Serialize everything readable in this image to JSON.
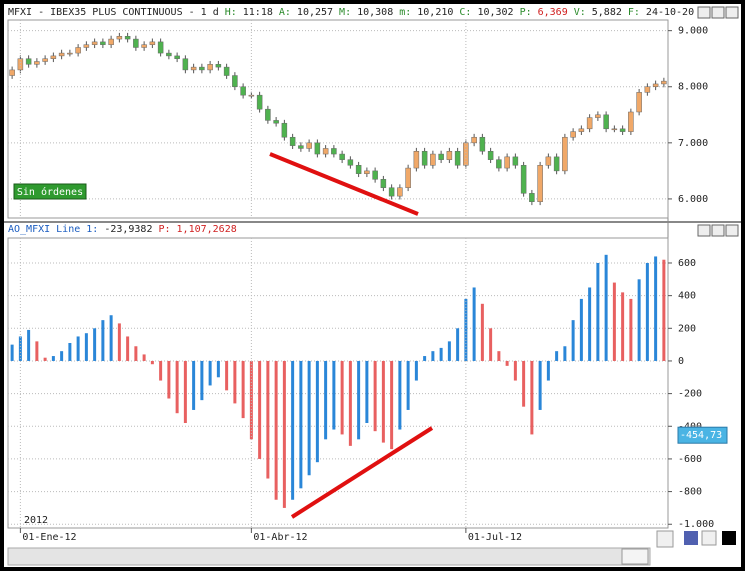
{
  "chart_data": [
    {
      "type": "candlestick",
      "title": "MFXI - IBEX35 PLUS CONTINUOUS -  1 d",
      "info": [
        {
          "label": "H:",
          "value": "11:18"
        },
        {
          "label": "A:",
          "value": "10,257"
        },
        {
          "label": "M:",
          "value": "10,308"
        },
        {
          "label": "m:",
          "value": "10,210"
        },
        {
          "label": "C:",
          "value": "10,302"
        },
        {
          "label": "P:",
          "value": "6,369"
        },
        {
          "label": "V:",
          "value": "5,882"
        },
        {
          "label": "F:",
          "value": "24-10-20"
        }
      ],
      "order_status": "Sin órdenes",
      "up_color": "#f0a868",
      "down_color": "#4fb24f",
      "ylim": [
        5660,
        9190
      ],
      "yticks": [
        {
          "value": 9000,
          "label": "9.000"
        },
        {
          "value": 8000,
          "label": "8.000"
        },
        {
          "value": 7000,
          "label": "7.000"
        },
        {
          "value": 6000,
          "label": "6.000"
        }
      ],
      "grid": true,
      "open": [
        8200,
        8300,
        8500,
        8400,
        8450,
        8500,
        8550,
        8600,
        8600,
        8700,
        8750,
        8800,
        8750,
        8850,
        8900,
        8850,
        8700,
        8750,
        8800,
        8600,
        8550,
        8500,
        8300,
        8350,
        8300,
        8400,
        8350,
        8200,
        8000,
        7850,
        7850,
        7600,
        7400,
        7350,
        7100,
        6950,
        6900,
        7000,
        6800,
        6900,
        6800,
        6700,
        6600,
        6450,
        6500,
        6350,
        6200,
        6050,
        6200,
        6550,
        6850,
        6600,
        6800,
        6700,
        6850,
        6600,
        7000,
        7100,
        6850,
        6700,
        6550,
        6750,
        6600,
        6100,
        5950,
        6600,
        6750,
        6500,
        7100,
        7200,
        7250,
        7450,
        7500,
        7250,
        7250,
        7200,
        7550,
        7900,
        8000,
        8050
      ],
      "high": [
        8360,
        8560,
        8560,
        8510,
        8560,
        8610,
        8660,
        8660,
        8760,
        8810,
        8860,
        8860,
        8910,
        8960,
        8960,
        8910,
        8810,
        8860,
        8860,
        8660,
        8610,
        8560,
        8410,
        8410,
        8460,
        8460,
        8410,
        8260,
        8060,
        7910,
        7910,
        7660,
        7460,
        7410,
        7160,
        7010,
        7060,
        7060,
        6960,
        6960,
        6860,
        6760,
        6660,
        6560,
        6560,
        6410,
        6260,
        6260,
        6610,
        6910,
        6910,
        6860,
        6860,
        6910,
        6910,
        7060,
        7160,
        7160,
        6910,
        6760,
        6810,
        6810,
        6660,
        6160,
        6660,
        6810,
        6810,
        7160,
        7260,
        7310,
        7510,
        7560,
        7560,
        7310,
        7310,
        7610,
        7960,
        8060,
        8110,
        8160
      ],
      "low": [
        8140,
        8240,
        8340,
        8340,
        8390,
        8440,
        8490,
        8540,
        8540,
        8640,
        8690,
        8690,
        8690,
        8790,
        8790,
        8640,
        8640,
        8690,
        8540,
        8490,
        8440,
        8240,
        8240,
        8240,
        8240,
        8290,
        8140,
        7940,
        7790,
        7790,
        7540,
        7340,
        7290,
        7040,
        6890,
        6840,
        6840,
        6740,
        6740,
        6740,
        6640,
        6540,
        6390,
        6390,
        6290,
        6140,
        5990,
        5990,
        6140,
        6490,
        6540,
        6540,
        6640,
        6640,
        6540,
        6540,
        6940,
        6790,
        6640,
        6490,
        6490,
        6540,
        6040,
        5890,
        5890,
        6540,
        6440,
        6440,
        7040,
        7140,
        7190,
        7390,
        7190,
        7190,
        7140,
        7140,
        7490,
        7840,
        7940,
        7990
      ],
      "close": [
        8300,
        8500,
        8400,
        8450,
        8500,
        8550,
        8600,
        8600,
        8700,
        8750,
        8800,
        8750,
        8850,
        8900,
        8850,
        8700,
        8750,
        8800,
        8600,
        8550,
        8500,
        8300,
        8350,
        8300,
        8400,
        8350,
        8200,
        8000,
        7850,
        7850,
        7600,
        7400,
        7350,
        7100,
        6950,
        6900,
        7000,
        6800,
        6900,
        6800,
        6700,
        6600,
        6450,
        6500,
        6350,
        6200,
        6050,
        6200,
        6550,
        6850,
        6600,
        6800,
        6700,
        6850,
        6600,
        7000,
        7100,
        6850,
        6700,
        6550,
        6750,
        6600,
        6100,
        5950,
        6600,
        6750,
        6500,
        7100,
        7200,
        7250,
        7450,
        7500,
        7250,
        7250,
        7200,
        7550,
        7900,
        8000,
        8050,
        8100
      ]
    },
    {
      "type": "bar",
      "title": "AO_MFXI Line 1:",
      "current": "-23,9382",
      "p_label": "P:",
      "p_value": "1,107,2628",
      "up_color": "#2a86d8",
      "down_color": "#e86060",
      "year_label": "2012",
      "categories": [
        null,
        "01-Ene-12",
        null,
        null,
        null,
        null,
        null,
        null,
        null,
        null,
        null,
        null,
        null,
        null,
        null,
        null,
        null,
        null,
        null,
        null,
        null,
        null,
        null,
        null,
        null,
        null,
        null,
        null,
        null,
        "01-Abr-12",
        null,
        null,
        null,
        null,
        null,
        null,
        null,
        null,
        null,
        null,
        null,
        null,
        null,
        null,
        null,
        null,
        null,
        null,
        null,
        null,
        null,
        null,
        null,
        null,
        null,
        "01-Jul-12",
        null,
        null,
        null,
        null,
        null,
        null,
        null,
        null,
        null,
        null,
        null,
        null,
        null,
        null,
        null,
        null,
        null,
        null,
        null,
        null,
        null,
        null,
        null,
        null
      ],
      "values": [
        100,
        150,
        190,
        120,
        20,
        30,
        60,
        110,
        150,
        170,
        200,
        250,
        280,
        230,
        150,
        90,
        40,
        -20,
        -120,
        -230,
        -320,
        -380,
        -300,
        -240,
        -150,
        -100,
        -180,
        -260,
        -350,
        -480,
        -600,
        -720,
        -850,
        -900,
        -850,
        -780,
        -700,
        -620,
        -480,
        -420,
        -450,
        -520,
        -480,
        -380,
        -430,
        -500,
        -540,
        -420,
        -300,
        -120,
        30,
        60,
        80,
        120,
        200,
        380,
        450,
        350,
        200,
        60,
        -30,
        -120,
        -280,
        -450,
        -300,
        -120,
        60,
        90,
        250,
        380,
        450,
        600,
        650,
        480,
        420,
        380,
        500,
        600,
        640,
        620
      ],
      "ylim": [
        -1023,
        753
      ],
      "yticks": [
        600,
        400,
        200,
        0,
        -200,
        -400,
        -600,
        -800,
        {
          "value": -1000,
          "label": "-1.000"
        }
      ],
      "grid": true,
      "marker": {
        "value": -454.73,
        "label": "-454,73"
      }
    }
  ]
}
